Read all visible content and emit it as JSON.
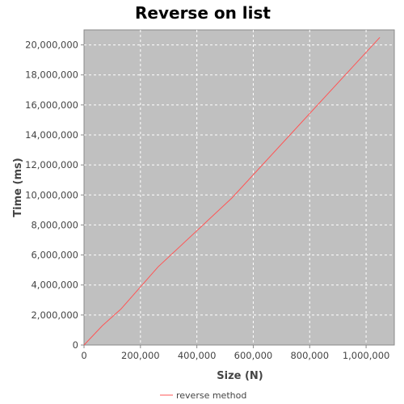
{
  "chart_data": {
    "type": "line",
    "title": "Reverse on list",
    "xlabel": "Size (N)",
    "ylabel": "Time (ms)",
    "xlim": [
      0,
      1100000
    ],
    "ylim": [
      0,
      21000000
    ],
    "x_ticks": [
      0,
      200000,
      400000,
      600000,
      800000,
      1000000
    ],
    "x_tick_labels": [
      "0",
      "200,000",
      "400,000",
      "600,000",
      "800,000",
      "1,000,000"
    ],
    "y_ticks": [
      0,
      2000000,
      4000000,
      6000000,
      8000000,
      10000000,
      12000000,
      14000000,
      16000000,
      18000000,
      20000000
    ],
    "y_tick_labels": [
      "0",
      "2,000,000",
      "4,000,000",
      "6,000,000",
      "8,000,000",
      "10,000,000",
      "12,000,000",
      "14,000,000",
      "16,000,000",
      "18,000,000",
      "20,000,000"
    ],
    "grid": true,
    "legend_position": "bottom-center",
    "plot_background": "#c0c0c0",
    "series": [
      {
        "name": "reverse method",
        "color": "#ff5555",
        "x": [
          0,
          65536,
          131072,
          262144,
          524288,
          1048576
        ],
        "y": [
          0,
          1300000,
          2400000,
          5200000,
          9800000,
          20500000
        ]
      }
    ]
  }
}
